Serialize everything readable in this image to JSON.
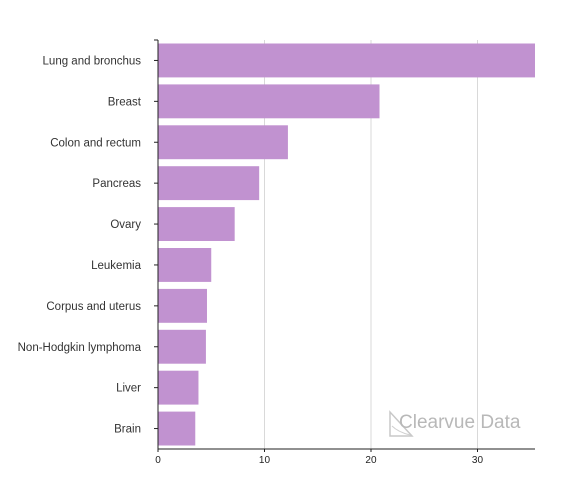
{
  "chart_data": {
    "type": "bar",
    "orientation": "horizontal",
    "categories": [
      "Lung and bronchus",
      "Breast",
      "Colon and rectum",
      "Pancreas",
      "Ovary",
      "Leukemia",
      "Corpus and uterus",
      "Non-Hodgkin lymphoma",
      "Liver",
      "Brain"
    ],
    "values": [
      35.4,
      20.8,
      12.2,
      9.5,
      7.2,
      5.0,
      4.6,
      4.5,
      3.8,
      3.5
    ],
    "xlim": [
      0,
      35.4
    ],
    "xticks": [
      0,
      10,
      20,
      30
    ],
    "grid": true,
    "title": "",
    "xlabel": "",
    "ylabel": "",
    "bar_color": "#c192d0",
    "bar_opacity": 1
  },
  "watermark": {
    "text": "Clearvue Data",
    "color": "#b8b8b8"
  }
}
